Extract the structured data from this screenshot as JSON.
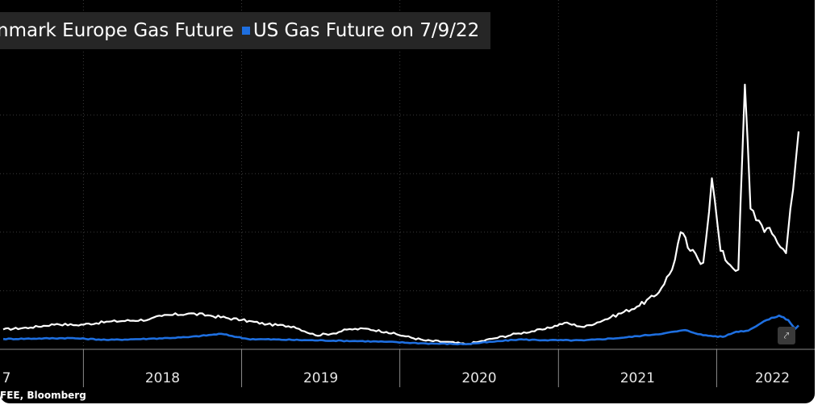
{
  "colors": {
    "background": "#000000",
    "europe_series": "#ffffff",
    "us_series": "#1e6fe0",
    "gridline": "#3a3a3a"
  },
  "source_text": "FEE, Bloomberg",
  "expand_icon": "expand-icon",
  "chart_data": {
    "type": "line",
    "title": "",
    "xlabel": "",
    "ylabel": "",
    "x_tick_labels": [
      "7",
      "2018",
      "2019",
      "2020",
      "2021",
      "2022"
    ],
    "xlim": [
      "2017-06-30",
      "2022-07-09"
    ],
    "ylim": [
      0,
      125
    ],
    "y_gridlines": [
      25,
      50,
      75,
      100
    ],
    "grid": true,
    "legend_position": "top-left",
    "series": [
      {
        "name": "nmark Europe Gas Future",
        "color": "#ffffff",
        "points": [
          [
            "2017-06-30",
            8.5
          ],
          [
            "2017-09-01",
            9.3
          ],
          [
            "2017-11-01",
            10.8
          ],
          [
            "2017-12-15",
            10.3
          ],
          [
            "2018-03-01",
            11.8
          ],
          [
            "2018-06-01",
            12.7
          ],
          [
            "2018-07-01",
            14.2
          ],
          [
            "2018-09-01",
            15.3
          ],
          [
            "2018-10-15",
            14.5
          ],
          [
            "2019-01-01",
            12.5
          ],
          [
            "2019-03-01",
            10.7
          ],
          [
            "2019-05-01",
            9.7
          ],
          [
            "2019-06-20",
            6.0
          ],
          [
            "2019-08-01",
            6.8
          ],
          [
            "2019-09-01",
            8.4
          ],
          [
            "2019-10-15",
            8.8
          ],
          [
            "2019-12-01",
            7.4
          ],
          [
            "2020-01-15",
            5.5
          ],
          [
            "2020-03-01",
            3.7
          ],
          [
            "2020-04-15",
            3.2
          ],
          [
            "2020-06-01",
            2.2
          ],
          [
            "2020-07-01",
            3.2
          ],
          [
            "2020-08-01",
            4.5
          ],
          [
            "2020-10-01",
            6.8
          ],
          [
            "2020-12-01",
            8.6
          ],
          [
            "2021-01-15",
            11.3
          ],
          [
            "2021-03-01",
            9.5
          ],
          [
            "2021-05-01",
            13.6
          ],
          [
            "2021-07-01",
            18.2
          ],
          [
            "2021-08-15",
            23.2
          ],
          [
            "2021-09-20",
            34.0
          ],
          [
            "2021-10-10",
            50.0
          ],
          [
            "2021-11-01",
            42.0
          ],
          [
            "2021-12-01",
            37.0
          ],
          [
            "2021-12-21",
            73.0
          ],
          [
            "2022-01-10",
            42.0
          ],
          [
            "2022-02-01",
            36.0
          ],
          [
            "2022-02-20",
            34.0
          ],
          [
            "2022-03-07",
            113.0
          ],
          [
            "2022-03-20",
            60.0
          ],
          [
            "2022-04-15",
            53.0
          ],
          [
            "2022-05-15",
            48.0
          ],
          [
            "2022-06-10",
            41.0
          ],
          [
            "2022-06-20",
            60.0
          ],
          [
            "2022-07-09",
            93.0
          ]
        ]
      },
      {
        "name": "US Gas Future on 7/9/22",
        "color": "#1e6fe0",
        "points": [
          [
            "2017-06-30",
            4.4
          ],
          [
            "2017-12-01",
            4.8
          ],
          [
            "2018-03-01",
            4.0
          ],
          [
            "2018-06-01",
            4.5
          ],
          [
            "2018-09-01",
            5.2
          ],
          [
            "2018-11-15",
            6.6
          ],
          [
            "2019-01-15",
            4.4
          ],
          [
            "2019-06-01",
            3.9
          ],
          [
            "2019-10-01",
            3.5
          ],
          [
            "2019-12-01",
            3.2
          ],
          [
            "2020-03-01",
            2.5
          ],
          [
            "2020-06-01",
            2.2
          ],
          [
            "2020-08-01",
            3.2
          ],
          [
            "2020-10-01",
            4.2
          ],
          [
            "2020-12-01",
            3.9
          ],
          [
            "2021-03-01",
            3.8
          ],
          [
            "2021-06-01",
            5.0
          ],
          [
            "2021-09-01",
            6.8
          ],
          [
            "2021-10-20",
            8.2
          ],
          [
            "2021-12-01",
            6.0
          ],
          [
            "2022-01-15",
            5.3
          ],
          [
            "2022-02-15",
            7.5
          ],
          [
            "2022-03-15",
            8.0
          ],
          [
            "2022-04-20",
            12.0
          ],
          [
            "2022-05-25",
            14.4
          ],
          [
            "2022-06-15",
            12.5
          ],
          [
            "2022-07-01",
            8.7
          ],
          [
            "2022-07-09",
            10.2
          ]
        ]
      }
    ]
  }
}
